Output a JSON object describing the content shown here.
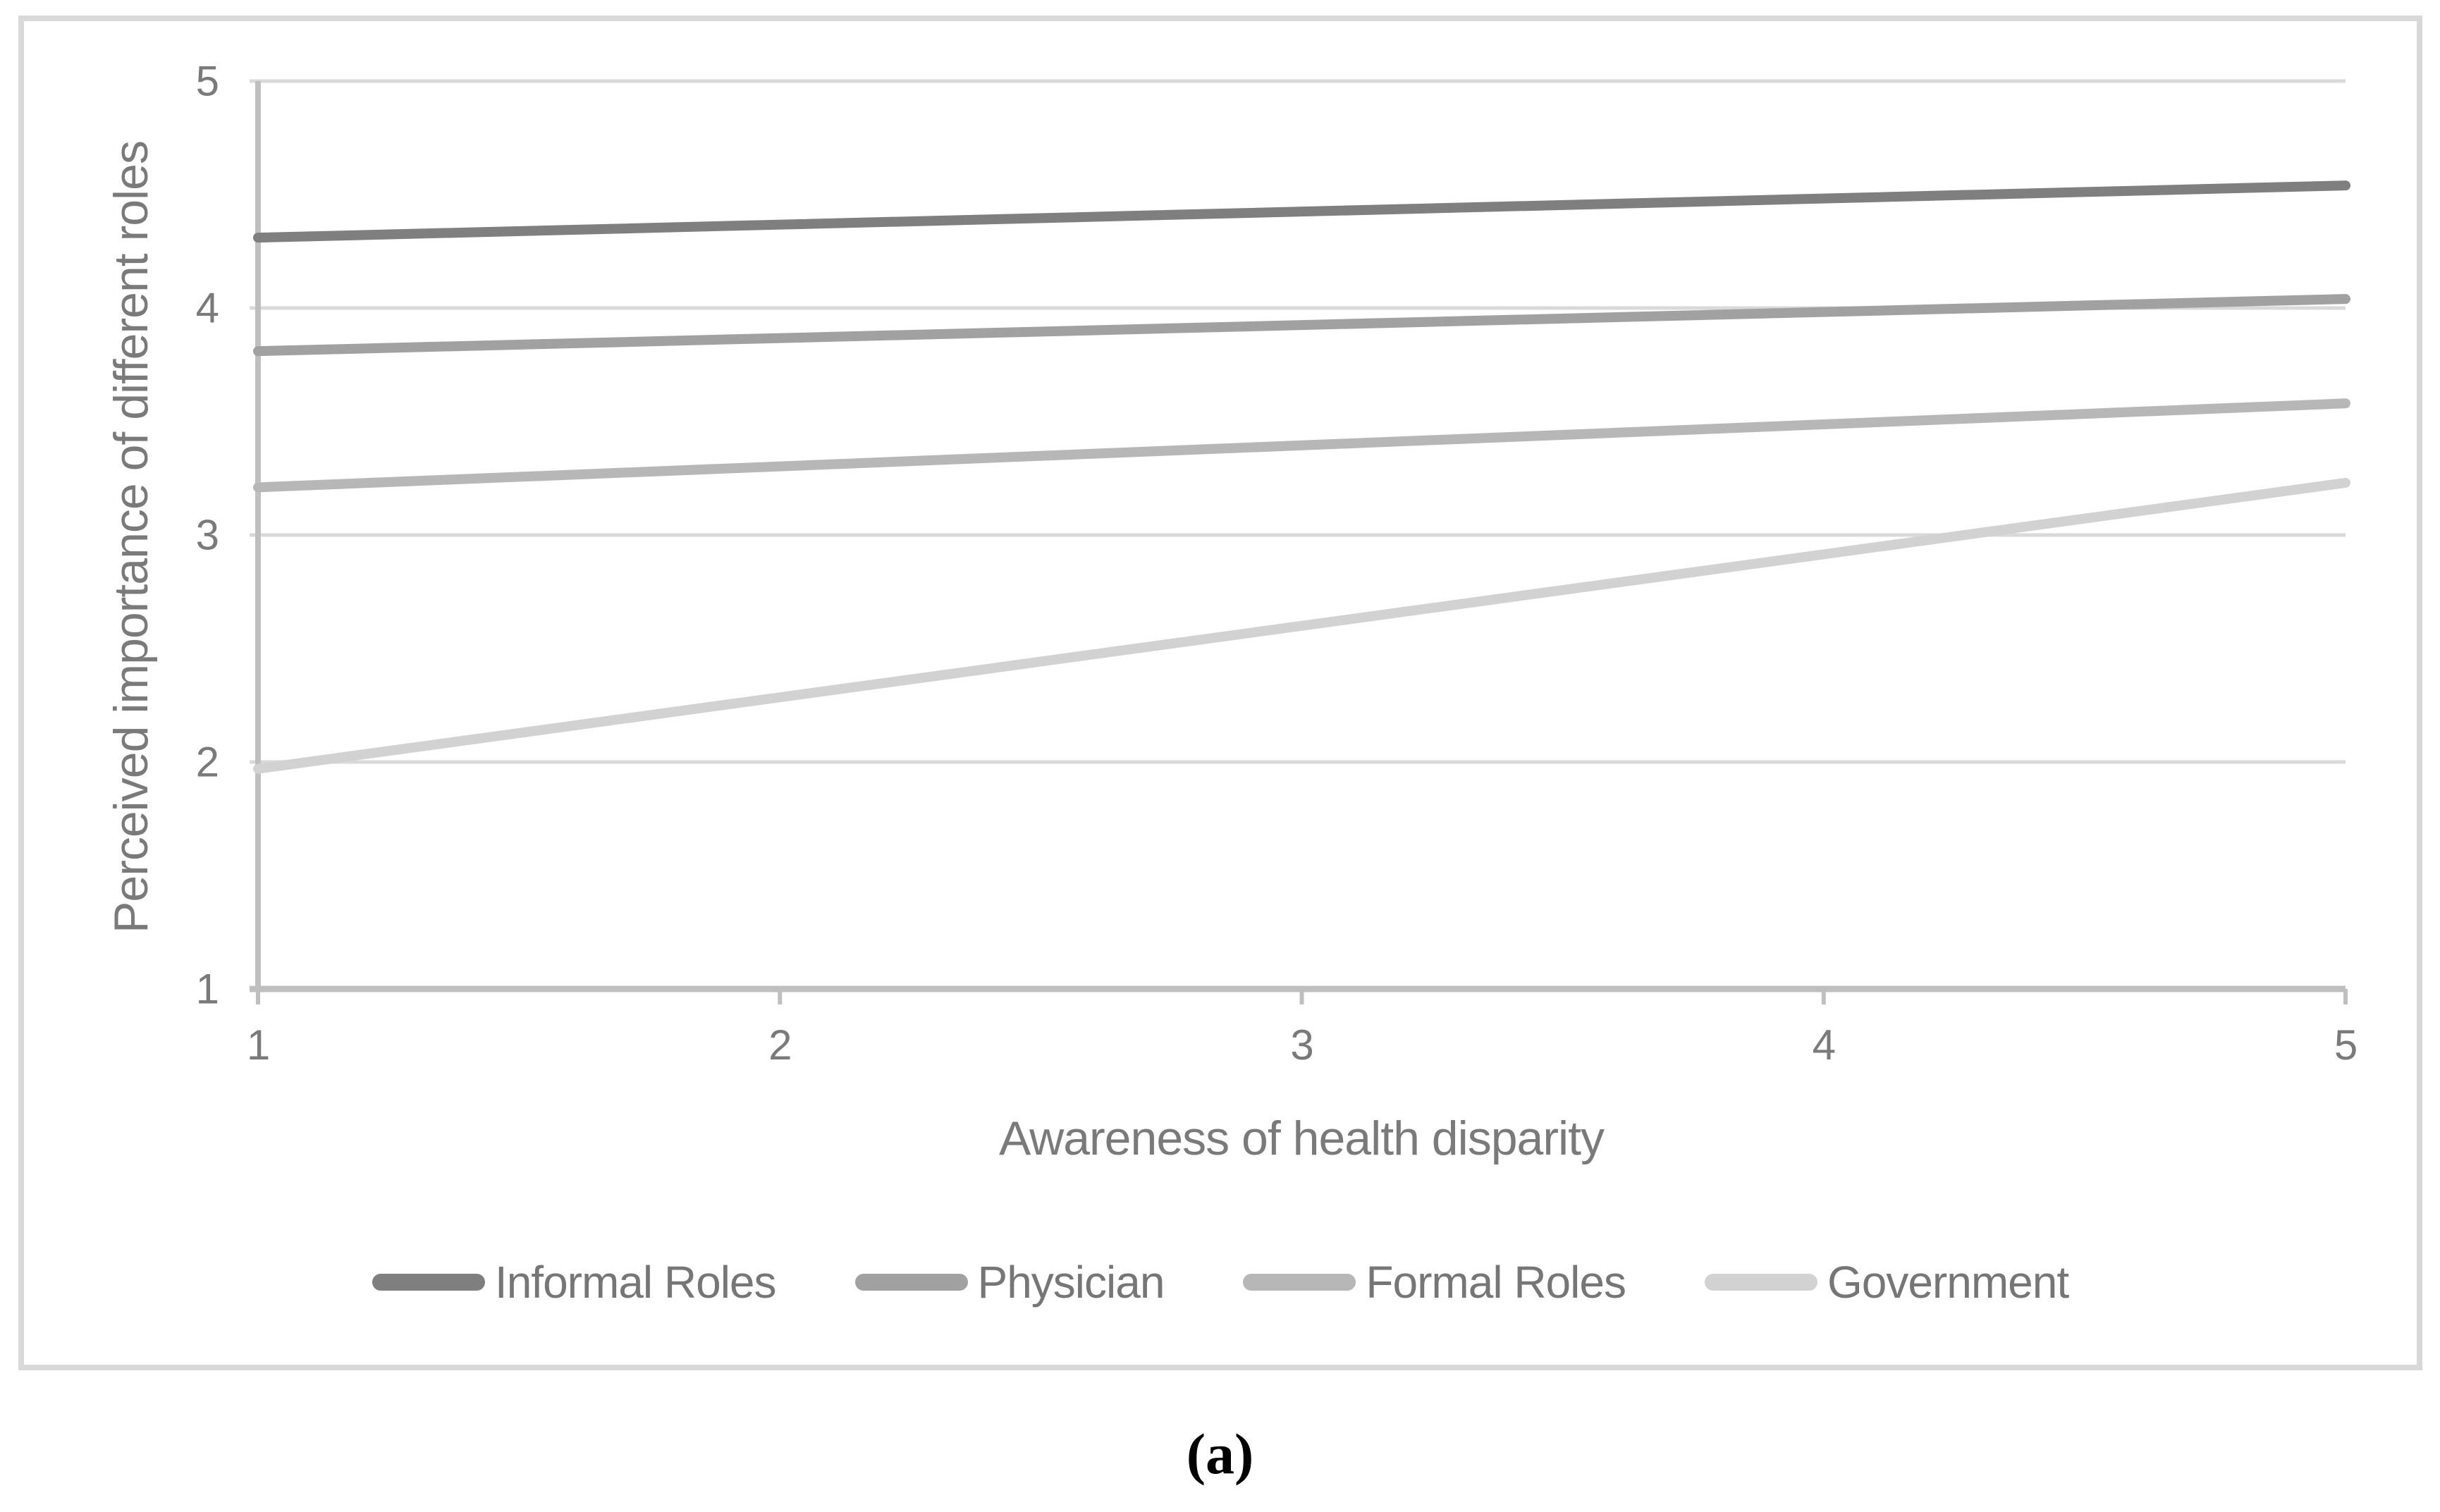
{
  "chart_data": {
    "type": "line",
    "x": [
      1,
      5
    ],
    "series": [
      {
        "name": "Informal Roles",
        "color": "#7f7f7f",
        "values": [
          4.31,
          4.54
        ]
      },
      {
        "name": "Physician",
        "color": "#a1a1a1",
        "values": [
          3.81,
          4.04
        ]
      },
      {
        "name": "Formal Roles",
        "color": "#b7b7b7",
        "values": [
          3.21,
          3.58
        ]
      },
      {
        "name": "Government",
        "color": "#d2d2d2",
        "values": [
          1.97,
          3.23
        ]
      }
    ],
    "title": "",
    "xlabel": "Awareness of health disparity",
    "ylabel": "Perceived importance of different roles",
    "xlim": [
      1,
      5
    ],
    "ylim": [
      1,
      5
    ],
    "x_ticks": [
      "1",
      "2",
      "3",
      "4",
      "5"
    ],
    "y_ticks": [
      "1",
      "2",
      "3",
      "4",
      "5"
    ],
    "grid": "horizontal",
    "legend_position": "bottom",
    "gridline_color": "#d9d9d9",
    "axis_color": "#bfbfbf",
    "tick_text_color": "#7a7a7a"
  },
  "caption": "(a)"
}
